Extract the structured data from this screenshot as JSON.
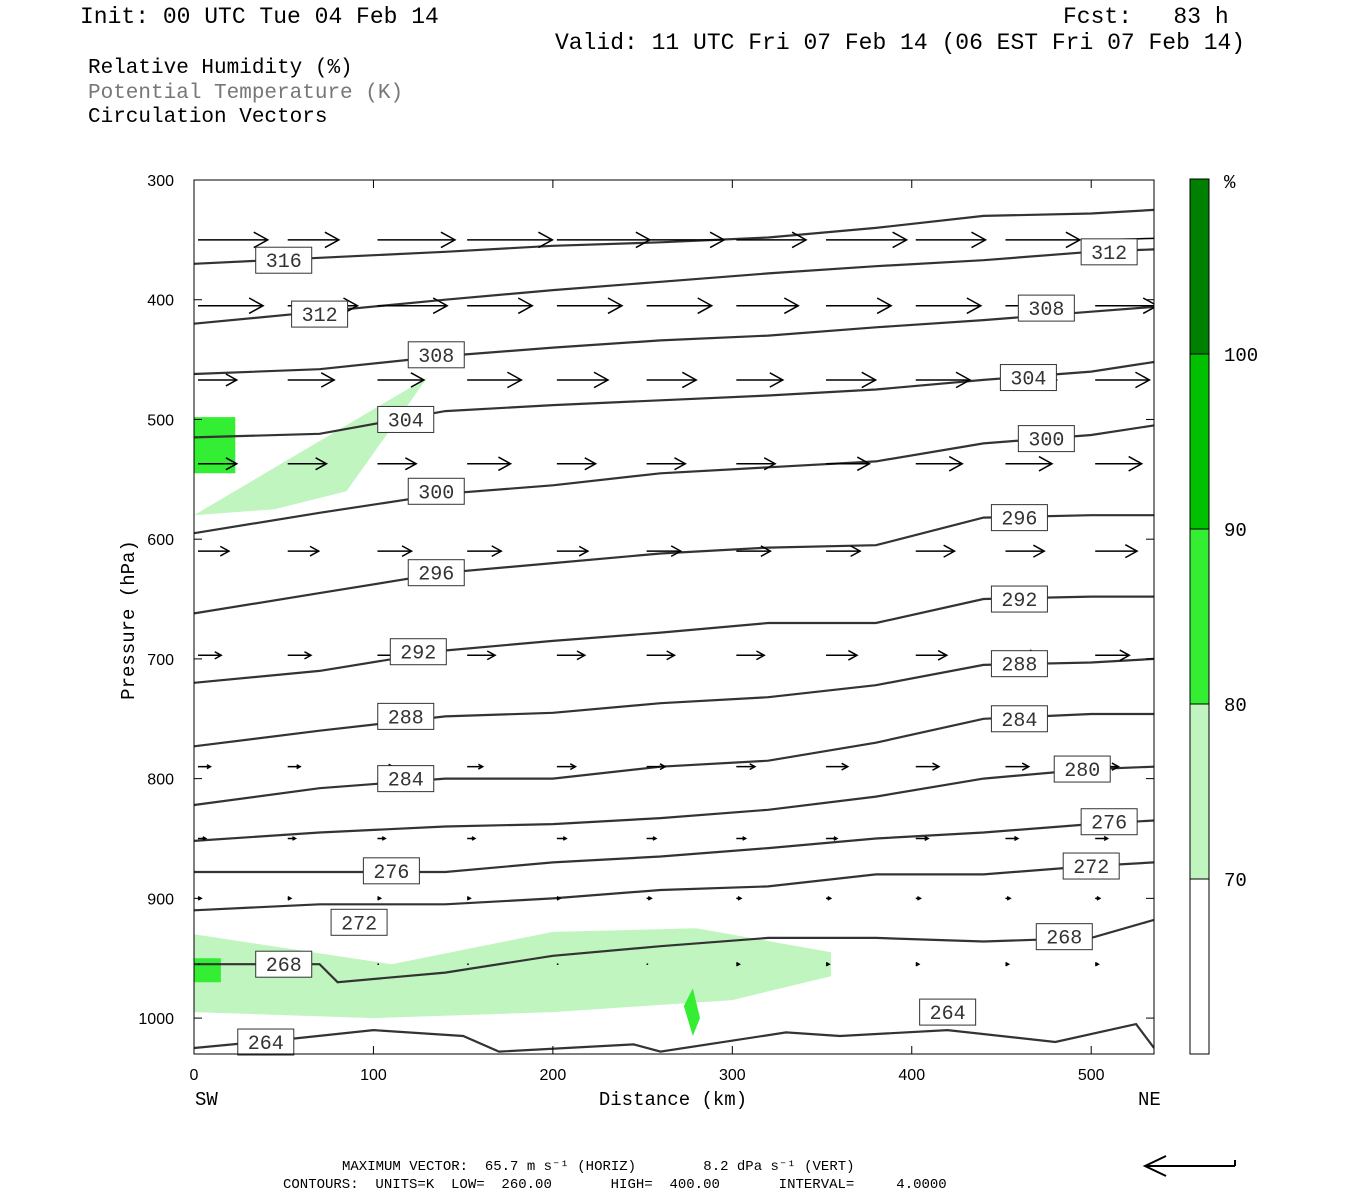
{
  "header": {
    "init": "Init: 00 UTC Tue 04 Feb 14",
    "fcst": "Fcst:   83 h",
    "valid": "Valid: 11 UTC Fri 07 Feb 14 (06 EST Fri 07 Feb 14)"
  },
  "legend": {
    "line1": "Relative Humidity (%)",
    "line2": "Potential Temperature (K)",
    "line3": "Circulation Vectors"
  },
  "axes": {
    "xlabel": "Distance (km)",
    "ylabel": "Pressure (hPa)",
    "left_end": "SW",
    "right_end": "NE"
  },
  "footer": {
    "max_vector": "MAXIMUM VECTOR:  65.7 m s⁻¹ (HORIZ)        8.2 dPa s⁻¹ (VERT)",
    "contours": "CONTOURS:  UNITS=K  LOW=  260.00       HIGH=  400.00       INTERVAL=     4.0000"
  },
  "colorbar": {
    "unit": "%",
    "levels": [
      "70",
      "80",
      "90",
      "100"
    ],
    "colors": [
      "#ffffff",
      "#c0f5c0",
      "#33ee33",
      "#00c000",
      "#008000"
    ]
  },
  "colors": {
    "isentrope": "#333333",
    "vector": "#000000",
    "rh70": "#c0f5c0",
    "rh80": "#33ee33",
    "rh90": "#00c000"
  },
  "chart_data": {
    "type": "cross-section",
    "xlim": [
      0,
      535
    ],
    "ylim": [
      300,
      1030
    ],
    "y_scale": "linear pressure (inverted)",
    "x_ticks": [
      0,
      100,
      200,
      300,
      400,
      500
    ],
    "y_ticks": [
      300,
      400,
      500,
      600,
      700,
      800,
      900,
      1000
    ],
    "grid": false,
    "rh_regions": [
      {
        "level": "70-80",
        "x": [
          0,
          0,
          130,
          130,
          85,
          45,
          0
        ],
        "p": [
          480,
          580,
          465,
          465,
          560,
          575,
          580
        ]
      },
      {
        "level": "80-90",
        "x": [
          0,
          0,
          23,
          23
        ],
        "p": [
          498,
          545,
          545,
          498
        ]
      },
      {
        "level": "70-80",
        "x": [
          0,
          0,
          100,
          200,
          300,
          355,
          355,
          280,
          200,
          110,
          0
        ],
        "p": [
          930,
          995,
          1000,
          995,
          985,
          965,
          945,
          925,
          928,
          955,
          930
        ]
      },
      {
        "level": "80-90",
        "x": [
          0,
          0,
          15,
          15
        ],
        "p": [
          950,
          970,
          970,
          950
        ]
      },
      {
        "level": "80-90",
        "x": [
          273,
          278,
          282,
          278
        ],
        "p": [
          990,
          975,
          1000,
          1015
        ]
      }
    ],
    "isentropes": [
      {
        "theta": 316,
        "x": [
          0,
          70,
          140,
          200,
          260,
          320,
          380,
          440,
          500,
          535
        ],
        "p": [
          370,
          365,
          360,
          355,
          352,
          348,
          340,
          330,
          328,
          325
        ],
        "label_at": [
          50,
          367
        ]
      },
      {
        "theta": 312,
        "x": [
          0,
          70,
          140,
          200,
          260,
          320,
          380,
          440,
          500,
          535
        ],
        "p": [
          420,
          410,
          400,
          392,
          385,
          378,
          372,
          367,
          360,
          358
        ],
        "label_at": [
          70,
          412
        ],
        "label2_at": [
          510,
          360
        ]
      },
      {
        "theta": 308,
        "x": [
          0,
          70,
          140,
          200,
          260,
          320,
          380,
          440,
          500,
          535
        ],
        "p": [
          462,
          458,
          447,
          440,
          434,
          430,
          423,
          417,
          410,
          406
        ],
        "label_at": [
          135,
          446
        ],
        "label2_at": [
          475,
          407
        ]
      },
      {
        "theta": 304,
        "x": [
          0,
          70,
          140,
          200,
          260,
          320,
          380,
          440,
          500,
          535
        ],
        "p": [
          515,
          512,
          493,
          488,
          484,
          480,
          475,
          467,
          460,
          452
        ],
        "label_at": [
          118,
          500
        ],
        "label2_at": [
          465,
          465
        ]
      },
      {
        "theta": 300,
        "x": [
          0,
          70,
          140,
          200,
          260,
          320,
          380,
          440,
          500,
          535
        ],
        "p": [
          595,
          578,
          562,
          555,
          545,
          540,
          535,
          520,
          513,
          505
        ],
        "label_at": [
          135,
          560
        ],
        "label2_at": [
          475,
          516
        ]
      },
      {
        "theta": 296,
        "x": [
          0,
          70,
          140,
          200,
          260,
          320,
          380,
          440,
          500,
          535
        ],
        "p": [
          662,
          645,
          628,
          620,
          612,
          607,
          605,
          582,
          580,
          580
        ],
        "label_at": [
          135,
          628
        ],
        "label2_at": [
          460,
          582
        ]
      },
      {
        "theta": 292,
        "x": [
          0,
          70,
          140,
          200,
          260,
          320,
          380,
          440,
          500,
          535
        ],
        "p": [
          720,
          710,
          693,
          685,
          678,
          670,
          670,
          650,
          648,
          648
        ],
        "label_at": [
          125,
          694
        ],
        "label2_at": [
          460,
          650
        ]
      },
      {
        "theta": 288,
        "x": [
          0,
          70,
          140,
          200,
          260,
          320,
          380,
          440,
          500,
          535
        ],
        "p": [
          773,
          760,
          748,
          745,
          737,
          732,
          722,
          705,
          703,
          700
        ],
        "label_at": [
          118,
          748
        ],
        "label2_at": [
          460,
          704
        ]
      },
      {
        "theta": 284,
        "x": [
          0,
          70,
          140,
          200,
          260,
          320,
          380,
          440,
          500,
          535
        ],
        "p": [
          822,
          808,
          800,
          800,
          790,
          785,
          770,
          750,
          746,
          746
        ],
        "label_at": [
          118,
          800
        ],
        "label2_at": [
          460,
          750
        ]
      },
      {
        "theta": 280,
        "x": [
          0,
          70,
          140,
          200,
          260,
          320,
          380,
          440,
          500,
          535
        ],
        "p": [
          852,
          845,
          840,
          838,
          833,
          826,
          815,
          800,
          792,
          790
        ],
        "label_at": [
          495,
          792
        ]
      },
      {
        "theta": 276,
        "x": [
          0,
          70,
          140,
          200,
          260,
          320,
          380,
          440,
          500,
          535
        ],
        "p": [
          878,
          878,
          878,
          870,
          865,
          858,
          850,
          845,
          838,
          835
        ],
        "label_at": [
          110,
          877
        ],
        "label2_at": [
          510,
          836
        ]
      },
      {
        "theta": 272,
        "x": [
          0,
          70,
          140,
          200,
          260,
          320,
          380,
          440,
          500,
          535
        ],
        "p": [
          910,
          905,
          905,
          900,
          893,
          890,
          880,
          880,
          873,
          870
        ],
        "label_at": [
          92,
          920
        ],
        "label2_at": [
          500,
          873
        ]
      },
      {
        "theta": 268,
        "x": [
          0,
          70,
          80,
          140,
          200,
          260,
          320,
          380,
          440,
          500,
          535
        ],
        "p": [
          955,
          955,
          970,
          962,
          948,
          940,
          933,
          933,
          936,
          933,
          918
        ],
        "label_at": [
          50,
          955
        ],
        "label2_at": [
          485,
          932
        ]
      },
      {
        "theta": 264,
        "x": [
          0,
          50,
          100,
          150,
          170,
          245,
          260,
          330,
          360,
          420,
          480,
          525,
          535
        ],
        "p": [
          1025,
          1018,
          1010,
          1015,
          1028,
          1022,
          1028,
          1012,
          1015,
          1010,
          1020,
          1005,
          1025
        ],
        "label_at": [
          40,
          1020
        ],
        "label2_at": [
          420,
          995
        ]
      }
    ],
    "vector_rows": [
      {
        "p": 350,
        "x": [
          0,
          50,
          100,
          150,
          200,
          250,
          300,
          350,
          400,
          450,
          500
        ],
        "u": [
          45,
          33,
          50,
          55,
          60,
          50,
          45,
          52,
          45,
          48,
          52
        ],
        "w": [
          0,
          0,
          0,
          0,
          0,
          0,
          0,
          0,
          0,
          0,
          -1
        ]
      },
      {
        "p": 405,
        "x": [
          0,
          50,
          100,
          150,
          200,
          250,
          300,
          350,
          400,
          450,
          500
        ],
        "u": [
          42,
          45,
          45,
          42,
          42,
          42,
          40,
          42,
          42,
          38,
          40
        ],
        "w": [
          0,
          0,
          0,
          0,
          0,
          0,
          0,
          0,
          0,
          0,
          0
        ]
      },
      {
        "p": 467,
        "x": [
          0,
          50,
          100,
          150,
          200,
          250,
          300,
          350,
          400,
          450,
          500
        ],
        "u": [
          25,
          30,
          30,
          35,
          33,
          32,
          30,
          32,
          35,
          33,
          35
        ],
        "w": [
          0,
          0,
          0,
          0,
          0,
          0,
          0,
          0,
          0,
          0,
          0
        ]
      },
      {
        "p": 537,
        "x": [
          0,
          50,
          100,
          150,
          200,
          250,
          300,
          350,
          400,
          450,
          500
        ],
        "u": [
          25,
          25,
          25,
          28,
          25,
          25,
          25,
          28,
          30,
          30,
          30
        ],
        "w": [
          0,
          0,
          0,
          0,
          0,
          0,
          0,
          0,
          0,
          0,
          0
        ]
      },
      {
        "p": 610,
        "x": [
          0,
          50,
          100,
          150,
          200,
          250,
          300,
          350,
          400,
          450,
          500
        ],
        "u": [
          20,
          20,
          22,
          22,
          20,
          22,
          22,
          22,
          25,
          25,
          27
        ],
        "w": [
          0,
          0,
          0,
          0,
          0,
          0,
          0,
          0,
          0,
          0,
          0
        ]
      },
      {
        "p": 697,
        "x": [
          0,
          50,
          100,
          150,
          200,
          250,
          300,
          350,
          400,
          450,
          500
        ],
        "u": [
          15,
          15,
          15,
          18,
          18,
          18,
          18,
          20,
          20,
          22,
          22
        ],
        "w": [
          0,
          0,
          0,
          0,
          0,
          0,
          0,
          0,
          0,
          0,
          0
        ]
      },
      {
        "p": 790,
        "x": [
          0,
          50,
          100,
          150,
          200,
          250,
          300,
          350,
          400,
          450,
          500
        ],
        "u": [
          8,
          8,
          10,
          10,
          12,
          12,
          12,
          14,
          15,
          15,
          15
        ],
        "w": [
          0,
          0,
          0,
          0,
          0,
          0,
          0,
          0,
          0,
          0,
          0
        ]
      },
      {
        "p": 850,
        "x": [
          0,
          50,
          100,
          150,
          200,
          250,
          300,
          350,
          400,
          450,
          500
        ],
        "u": [
          5,
          5,
          5,
          5,
          6,
          6,
          6,
          7,
          8,
          8,
          8
        ],
        "w": [
          0,
          0,
          0,
          0,
          0,
          0,
          0,
          0,
          0,
          0,
          0
        ]
      },
      {
        "p": 900,
        "x": [
          0,
          50,
          100,
          150,
          200,
          250,
          300,
          350,
          400,
          450,
          500
        ],
        "u": [
          2,
          2,
          2,
          2,
          2,
          3,
          3,
          3,
          3,
          3,
          3
        ],
        "w": [
          0,
          0,
          0,
          0,
          0,
          0,
          0,
          0,
          0,
          0,
          0
        ]
      },
      {
        "p": 955,
        "x": [
          0,
          50,
          100,
          150,
          200,
          250,
          300,
          350,
          400,
          450,
          500
        ],
        "u": [
          1,
          1,
          1,
          1,
          1,
          1,
          2,
          2,
          2,
          2,
          2
        ],
        "w": [
          0,
          0,
          0,
          0,
          0,
          0,
          0,
          0,
          0,
          0,
          0
        ]
      }
    ]
  }
}
